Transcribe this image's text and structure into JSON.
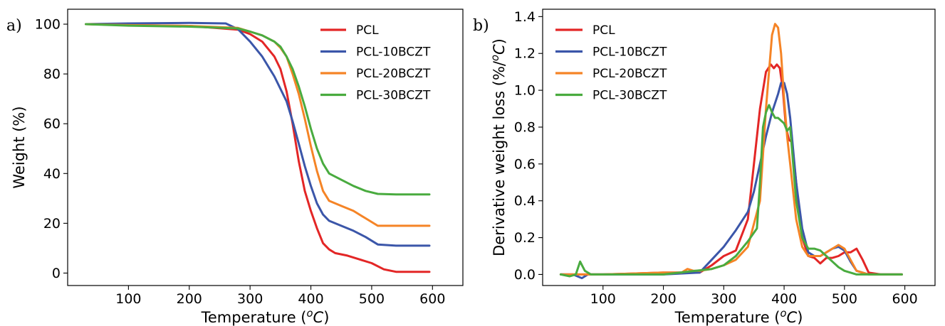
{
  "chart_data": [
    {
      "panel_label": "a)",
      "type": "line",
      "xlabel": "Temperature (°C)",
      "ylabel": "Weight (%)",
      "xlim": [
        0,
        650
      ],
      "ylim": [
        -5,
        106
      ],
      "xticks": [
        100,
        200,
        300,
        400,
        500,
        600
      ],
      "yticks": [
        0,
        20,
        40,
        60,
        80,
        100
      ],
      "grid": false,
      "legend_position": "top-right",
      "series": [
        {
          "name": "PCL",
          "color": "#e32626",
          "x": [
            30,
            100,
            200,
            280,
            300,
            320,
            340,
            350,
            360,
            370,
            380,
            390,
            400,
            410,
            420,
            430,
            440,
            460,
            480,
            500,
            520,
            540,
            595
          ],
          "y": [
            100,
            99.6,
            99.3,
            97.8,
            96,
            93,
            87,
            82,
            73,
            60,
            45,
            33,
            25,
            18,
            12,
            9.5,
            8,
            7,
            5.5,
            4,
            1.5,
            0.5,
            0.5
          ]
        },
        {
          "name": "PCL-10BCZT",
          "color": "#3b56a9",
          "x": [
            30,
            100,
            200,
            260,
            280,
            300,
            320,
            340,
            360,
            370,
            380,
            390,
            400,
            410,
            420,
            430,
            450,
            470,
            490,
            510,
            540,
            595
          ],
          "y": [
            100,
            100.3,
            100.5,
            100.3,
            98,
            93,
            87,
            79,
            69,
            61,
            52,
            43,
            35,
            28,
            23.5,
            21,
            19,
            17,
            14.5,
            11.5,
            11,
            11
          ]
        },
        {
          "name": "PCL-20BCZT",
          "color": "#f58426",
          "x": [
            30,
            100,
            200,
            280,
            300,
            320,
            340,
            350,
            360,
            370,
            380,
            390,
            400,
            410,
            420,
            430,
            450,
            470,
            490,
            510,
            540,
            595
          ],
          "y": [
            100,
            99.6,
            99.3,
            98.5,
            97,
            95.5,
            93,
            90.5,
            87,
            80,
            72,
            62,
            51,
            41,
            33,
            29,
            27,
            25,
            22,
            19,
            19,
            19
          ]
        },
        {
          "name": "PCL-30BCZT",
          "color": "#49ab3f",
          "x": [
            30,
            100,
            200,
            280,
            300,
            320,
            340,
            350,
            360,
            370,
            380,
            390,
            400,
            410,
            420,
            430,
            450,
            470,
            490,
            510,
            540,
            595
          ],
          "y": [
            100,
            99.4,
            99,
            98.3,
            97,
            95.5,
            93,
            91,
            87,
            82,
            75,
            67,
            58,
            50,
            44,
            40,
            37.5,
            35,
            33,
            31.8,
            31.6,
            31.6
          ]
        }
      ]
    },
    {
      "panel_label": "b)",
      "type": "line",
      "xlabel": "Temperature (°C)",
      "ylabel": "Derivative weight loss (%/°C)",
      "xlim": [
        0,
        650
      ],
      "ylim": [
        -0.06,
        1.44
      ],
      "xticks": [
        100,
        200,
        300,
        400,
        500,
        600
      ],
      "yticks": [
        0.0,
        0.2,
        0.4,
        0.6,
        0.8,
        1.0,
        1.2,
        1.4
      ],
      "grid": false,
      "legend_position": "top-left",
      "series": [
        {
          "name": "PCL",
          "color": "#e32626",
          "x": [
            30,
            100,
            200,
            260,
            280,
            300,
            320,
            340,
            350,
            360,
            370,
            378,
            383,
            388,
            393,
            398,
            403,
            408,
            413,
            420,
            430,
            440,
            450,
            460,
            470,
            480,
            490,
            500,
            510,
            520,
            530,
            540,
            560,
            595
          ],
          "y": [
            0,
            0,
            0.01,
            0.01,
            0.05,
            0.1,
            0.13,
            0.3,
            0.6,
            0.9,
            1.1,
            1.14,
            1.12,
            1.14,
            1.12,
            1.0,
            0.8,
            0.73,
            0.72,
            0.5,
            0.2,
            0.1,
            0.09,
            0.06,
            0.09,
            0.09,
            0.1,
            0.12,
            0.12,
            0.14,
            0.08,
            0.01,
            0,
            0
          ]
        },
        {
          "name": "PCL-10BCZT",
          "color": "#3b56a9",
          "x": [
            30,
            50,
            65,
            75,
            100,
            200,
            260,
            280,
            300,
            320,
            340,
            350,
            360,
            370,
            380,
            390,
            395,
            400,
            405,
            410,
            420,
            430,
            440,
            450,
            460,
            470,
            480,
            490,
            500,
            510,
            520,
            540,
            595
          ],
          "y": [
            0,
            0,
            -0.02,
            0,
            0,
            0,
            0.01,
            0.08,
            0.15,
            0.24,
            0.34,
            0.45,
            0.6,
            0.75,
            0.88,
            0.98,
            1.04,
            1.04,
            0.98,
            0.85,
            0.5,
            0.25,
            0.12,
            0.1,
            0.1,
            0.12,
            0.14,
            0.15,
            0.13,
            0.07,
            0.02,
            0,
            0
          ]
        },
        {
          "name": "PCL-20BCZT",
          "color": "#f58426",
          "x": [
            30,
            100,
            200,
            230,
            240,
            250,
            260,
            280,
            300,
            320,
            340,
            360,
            370,
            380,
            385,
            390,
            395,
            400,
            405,
            410,
            420,
            430,
            440,
            450,
            460,
            470,
            480,
            490,
            500,
            510,
            520,
            540,
            595
          ],
          "y": [
            0,
            0,
            0.01,
            0.01,
            0.03,
            0.02,
            0.02,
            0.03,
            0.05,
            0.08,
            0.15,
            0.4,
            0.9,
            1.3,
            1.36,
            1.34,
            1.2,
            0.95,
            0.75,
            0.6,
            0.3,
            0.15,
            0.1,
            0.1,
            0.1,
            0.12,
            0.14,
            0.16,
            0.14,
            0.08,
            0.02,
            0,
            0
          ]
        },
        {
          "name": "PCL-30BCZT",
          "color": "#49ab3f",
          "x": [
            30,
            45,
            55,
            62,
            70,
            80,
            100,
            200,
            280,
            300,
            320,
            340,
            355,
            360,
            365,
            370,
            375,
            380,
            385,
            390,
            400,
            405,
            410,
            415,
            420,
            430,
            440,
            450,
            460,
            470,
            480,
            490,
            500,
            520,
            595
          ],
          "y": [
            0,
            -0.01,
            0.0,
            0.07,
            0.02,
            0,
            0,
            0,
            0.03,
            0.05,
            0.1,
            0.18,
            0.25,
            0.5,
            0.8,
            0.88,
            0.92,
            0.88,
            0.85,
            0.85,
            0.82,
            0.78,
            0.8,
            0.6,
            0.4,
            0.2,
            0.14,
            0.14,
            0.13,
            0.1,
            0.07,
            0.04,
            0.02,
            0,
            0
          ]
        }
      ]
    }
  ]
}
